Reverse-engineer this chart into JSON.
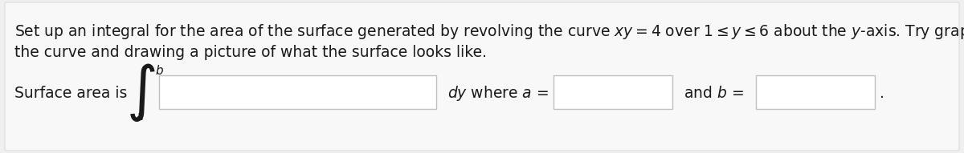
{
  "background_color": "#efefef",
  "content_bg": "#f5f5f5",
  "text_color": "#1a1a1a",
  "box_color": "#ffffff",
  "box_edge_color": "#c0c0c0",
  "fontsize_main": 13.5,
  "fontsize_integral": 38,
  "fontsize_limit": 11,
  "line1": "Set up an integral for the area of the surface generated by revolving the curve $xy = 4$ over $1 \\leq y \\leq 6$ about the $y$-axis. Try graphing",
  "line2": "the curve and drawing a picture of what the surface looks like.",
  "surface_text": "Surface area is",
  "dy_where_a": "$dy$ where $a$ =",
  "and_b": "and $b$ =",
  "period": "."
}
